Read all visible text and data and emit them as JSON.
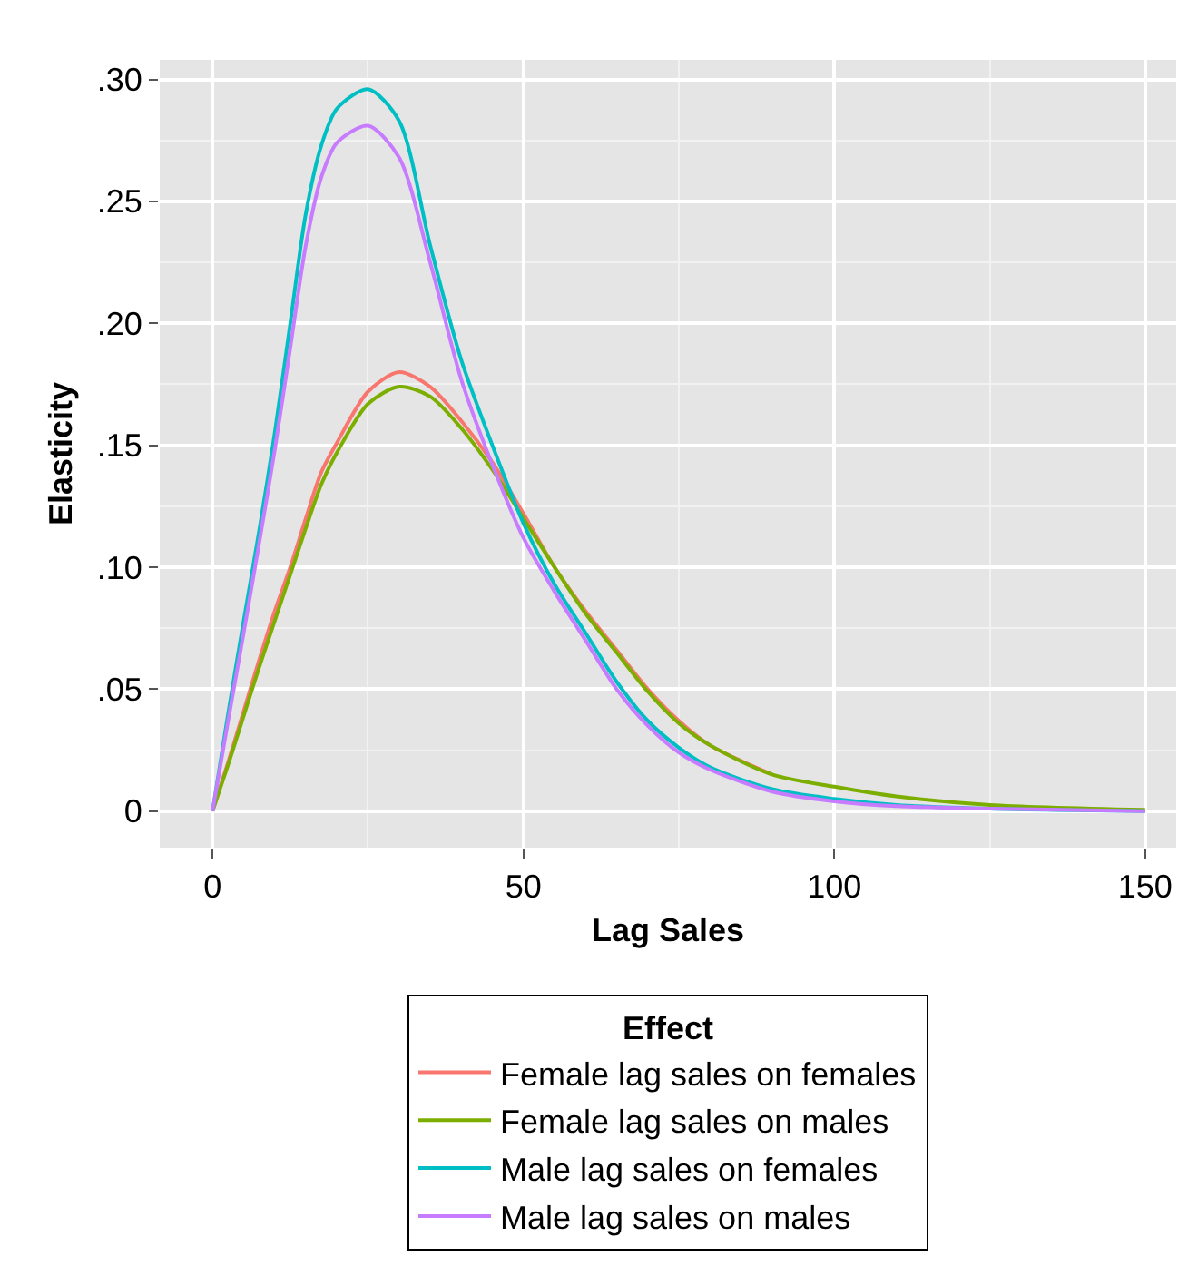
{
  "chart_data": {
    "type": "line",
    "xlabel": "Lag Sales",
    "ylabel": "Elasticity",
    "legend_title": "Effect",
    "x": [
      0,
      2.5,
      5,
      7.5,
      10,
      12.5,
      15,
      17.5,
      20,
      25,
      30,
      35,
      40,
      45,
      50,
      55,
      60,
      65,
      70,
      75,
      80,
      90,
      100,
      110,
      125,
      150
    ],
    "series": [
      {
        "name": "Female lag sales on females",
        "color": "#f8766d",
        "values": [
          0,
          0.02,
          0.041,
          0.062,
          0.082,
          0.1,
          0.12,
          0.139,
          0.151,
          0.172,
          0.18,
          0.174,
          0.16,
          0.143,
          0.122,
          0.1,
          0.082,
          0.066,
          0.05,
          0.037,
          0.027,
          0.015,
          null,
          null,
          null,
          null
        ]
      },
      {
        "name": "Female lag sales on males",
        "color": "#7cae00",
        "values": [
          0,
          0.019,
          0.039,
          0.059,
          0.078,
          0.097,
          0.116,
          0.134,
          0.147,
          0.167,
          0.174,
          0.17,
          0.157,
          0.14,
          0.12,
          0.1,
          0.081,
          0.065,
          0.049,
          0.036,
          0.027,
          0.015,
          0.01,
          0.006,
          0.0025,
          0.0005
        ]
      },
      {
        "name": "Male lag sales on females",
        "color": "#00bfc4",
        "values": [
          0,
          0.04,
          0.078,
          0.115,
          0.155,
          0.2,
          0.245,
          0.273,
          0.288,
          0.296,
          0.283,
          0.232,
          0.185,
          0.15,
          0.118,
          0.093,
          0.073,
          0.053,
          0.037,
          0.026,
          0.018,
          0.009,
          0.005,
          0.0025,
          0.001,
          0
        ]
      },
      {
        "name": "Male lag sales on males",
        "color": "#c77cff",
        "values": [
          0,
          0.037,
          0.073,
          0.11,
          0.148,
          0.19,
          0.232,
          0.26,
          0.274,
          0.281,
          0.268,
          0.225,
          0.177,
          0.142,
          0.112,
          0.09,
          0.07,
          0.05,
          0.035,
          0.024,
          0.017,
          0.008,
          0.004,
          0.002,
          0.001,
          0
        ]
      }
    ],
    "xlim": [
      -8.5,
      155
    ],
    "xticks": [
      0,
      50,
      100,
      150
    ],
    "ylim": [
      -0.015,
      0.308
    ],
    "yticks": [
      {
        "value": 0,
        "label": "0"
      },
      {
        "value": 0.05,
        "label": ".05"
      },
      {
        "value": 0.1,
        "label": ".10"
      },
      {
        "value": 0.15,
        "label": ".15"
      },
      {
        "value": 0.2,
        "label": ".20"
      },
      {
        "value": 0.25,
        "label": ".25"
      },
      {
        "value": 0.3,
        "label": ".30"
      }
    ],
    "grid": true,
    "legend": "bottom",
    "marker": "none",
    "line_style": "solid"
  }
}
